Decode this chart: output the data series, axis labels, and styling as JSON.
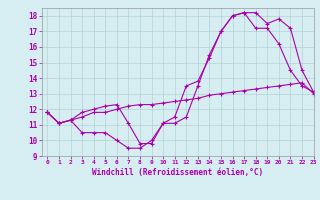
{
  "xlabel": "Windchill (Refroidissement éolien,°C)",
  "xlim": [
    -0.5,
    23
  ],
  "ylim": [
    9,
    18.5
  ],
  "xticks": [
    0,
    1,
    2,
    3,
    4,
    5,
    6,
    7,
    8,
    9,
    10,
    11,
    12,
    13,
    14,
    15,
    16,
    17,
    18,
    19,
    20,
    21,
    22,
    23
  ],
  "yticks": [
    9,
    10,
    11,
    12,
    13,
    14,
    15,
    16,
    17,
    18
  ],
  "bg_color": "#d6eef2",
  "line_color": "#aa00aa",
  "line1_x": [
    0,
    1,
    2,
    3,
    4,
    5,
    6,
    7,
    8,
    9,
    10,
    11,
    12,
    13,
    14,
    15,
    16,
    17,
    18,
    19,
    20,
    21,
    22,
    23
  ],
  "line1_y": [
    11.8,
    11.1,
    11.3,
    10.5,
    10.5,
    10.5,
    10.0,
    9.5,
    9.5,
    10.0,
    11.1,
    11.1,
    11.5,
    13.5,
    15.5,
    17.0,
    18.0,
    18.2,
    18.2,
    17.5,
    17.8,
    17.2,
    14.5,
    13.1
  ],
  "line2_x": [
    0,
    1,
    2,
    3,
    4,
    5,
    6,
    7,
    8,
    9,
    10,
    11,
    12,
    13,
    14,
    15,
    16,
    17,
    18,
    19,
    20,
    21,
    22,
    23
  ],
  "line2_y": [
    11.8,
    11.1,
    11.3,
    11.8,
    12.0,
    12.2,
    12.3,
    11.1,
    9.8,
    9.8,
    11.1,
    11.5,
    13.5,
    13.8,
    15.3,
    17.0,
    18.0,
    18.2,
    17.2,
    17.2,
    16.2,
    14.5,
    13.5,
    13.1
  ],
  "line3_x": [
    0,
    1,
    2,
    3,
    4,
    5,
    6,
    7,
    8,
    9,
    10,
    11,
    12,
    13,
    14,
    15,
    16,
    17,
    18,
    19,
    20,
    21,
    22,
    23
  ],
  "line3_y": [
    11.8,
    11.1,
    11.3,
    11.5,
    11.8,
    11.8,
    12.0,
    12.2,
    12.3,
    12.3,
    12.4,
    12.5,
    12.6,
    12.7,
    12.9,
    13.0,
    13.1,
    13.2,
    13.3,
    13.4,
    13.5,
    13.6,
    13.7,
    13.0
  ]
}
